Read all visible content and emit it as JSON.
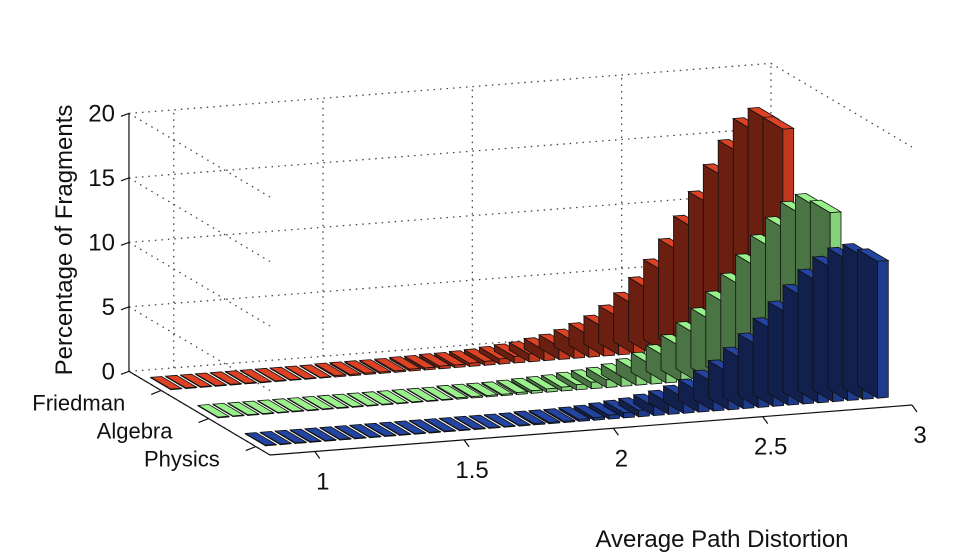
{
  "chart_data": {
    "type": "bar",
    "subtype": "3d-bar",
    "title": "",
    "xlabel": "Average Path Distortion",
    "ylabel": "Percentage of Fragments",
    "x_ticks": [
      "1",
      "1.5",
      "2",
      "2.5",
      "3"
    ],
    "y_ticks": [
      "0",
      "5",
      "10",
      "15",
      "20"
    ],
    "xlim": [
      0.85,
      3.0
    ],
    "ylim": [
      0,
      20
    ],
    "grid": true,
    "row_categories": [
      "Friedman",
      "Algebra",
      "Physics"
    ],
    "x": [
      0.9,
      0.95,
      1.0,
      1.05,
      1.1,
      1.15,
      1.2,
      1.25,
      1.3,
      1.35,
      1.4,
      1.45,
      1.5,
      1.55,
      1.6,
      1.65,
      1.7,
      1.75,
      1.8,
      1.85,
      1.9,
      1.95,
      2.0,
      2.05,
      2.1,
      2.15,
      2.2,
      2.25,
      2.3,
      2.35,
      2.4,
      2.45,
      2.5,
      2.55,
      2.6,
      2.65,
      2.7,
      2.75,
      2.8,
      2.85,
      2.9,
      2.95
    ],
    "series": [
      {
        "name": "Friedman",
        "color": "#c0391f",
        "values": [
          0.05,
          0.05,
          0.05,
          0.05,
          0.05,
          0.05,
          0.05,
          0.05,
          0.05,
          0.05,
          0.05,
          0.1,
          0.1,
          0.1,
          0.1,
          0.1,
          0.15,
          0.15,
          0.2,
          0.2,
          0.25,
          0.3,
          0.4,
          0.5,
          0.6,
          0.8,
          1.0,
          1.3,
          1.7,
          2.2,
          2.9,
          3.8,
          4.9,
          6.2,
          7.7,
          9.4,
          11.2,
          13.2,
          15.0,
          16.6,
          17.3,
          16.5
        ]
      },
      {
        "name": "Algebra",
        "color": "#86d27a",
        "values": [
          0.05,
          0.05,
          0.05,
          0.05,
          0.05,
          0.05,
          0.05,
          0.05,
          0.05,
          0.05,
          0.05,
          0.05,
          0.05,
          0.05,
          0.05,
          0.05,
          0.1,
          0.1,
          0.1,
          0.1,
          0.15,
          0.2,
          0.25,
          0.3,
          0.4,
          0.5,
          0.6,
          0.8,
          1.1,
          1.5,
          2.0,
          2.7,
          3.6,
          4.6,
          5.8,
          7.1,
          8.5,
          9.9,
          11.2,
          12.3,
          12.8,
          12.2
        ]
      },
      {
        "name": "Physics",
        "color": "#1e3b8c",
        "values": [
          0.05,
          0.05,
          0.05,
          0.05,
          0.05,
          0.05,
          0.05,
          0.05,
          0.05,
          0.05,
          0.05,
          0.05,
          0.05,
          0.05,
          0.05,
          0.05,
          0.05,
          0.05,
          0.1,
          0.1,
          0.1,
          0.15,
          0.2,
          0.3,
          0.4,
          0.5,
          0.7,
          0.9,
          1.2,
          1.6,
          2.2,
          2.9,
          3.8,
          4.8,
          5.9,
          7.1,
          8.3,
          9.4,
          10.3,
          10.9,
          11.1,
          10.6
        ]
      }
    ]
  }
}
